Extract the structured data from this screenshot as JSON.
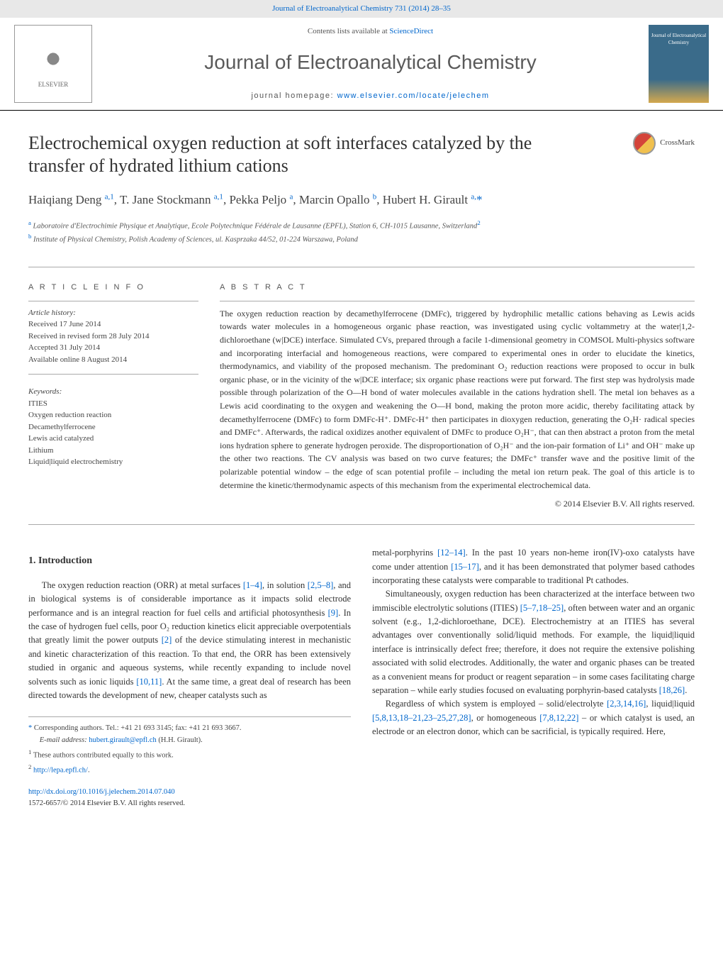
{
  "header": {
    "citation": "Journal of Electroanalytical Chemistry 731 (2014) 28–35",
    "contents_prefix": "Contents lists available at ",
    "contents_link": "ScienceDirect",
    "journal_title": "Journal of Electroanalytical Chemistry",
    "homepage_prefix": "journal homepage: ",
    "homepage_link": "www.elsevier.com/locate/jelechem",
    "publisher": "ELSEVIER",
    "cover_text": "Journal of Electroanalytical Chemistry"
  },
  "crossmark": {
    "label": "CrossMark"
  },
  "article": {
    "title": "Electrochemical oxygen reduction at soft interfaces catalyzed by the transfer of hydrated lithium cations",
    "authors_html": "Haiqiang Deng <sup>a,1</sup>, T. Jane Stockmann <sup>a,1</sup>, Pekka Peljo <sup>a</sup>, Marcin Opallo <sup>b</sup>, Hubert H. Girault <sup>a,</sup><span class='asterisk'>*</span>",
    "affil_a": "Laboratoire d'Electrochimie Physique et Analytique, Ecole Polytechnique Fédérale de Lausanne (EPFL), Station 6, CH-1015 Lausanne, Switzerland",
    "affil_b": "Institute of Physical Chemistry, Polish Academy of Sciences, ul. Kasprzaka 44/52, 01-224 Warszawa, Poland",
    "affil_a_sup": "a",
    "affil_b_sup": "b",
    "affil_a_note_sup": "2"
  },
  "info": {
    "section_label": "A R T I C L E   I N F O",
    "history_label": "Article history:",
    "received": "Received 17 June 2014",
    "revised": "Received in revised form 28 July 2014",
    "accepted": "Accepted 31 July 2014",
    "online": "Available online 8 August 2014",
    "keywords_label": "Keywords:",
    "keywords": [
      "ITIES",
      "Oxygen reduction reaction",
      "Decamethylferrocene",
      "Lewis acid catalyzed",
      "Lithium",
      "Liquid|liquid electrochemistry"
    ]
  },
  "abstract": {
    "label": "A B S T R A C T",
    "text": "The oxygen reduction reaction by decamethylferrocene (DMFc), triggered by hydrophilic metallic cations behaving as Lewis acids towards water molecules in a homogeneous organic phase reaction, was investigated using cyclic voltammetry at the water|1,2-dichloroethane (w|DCE) interface. Simulated CVs, prepared through a facile 1-dimensional geometry in COMSOL Multi-physics software and incorporating interfacial and homogeneous reactions, were compared to experimental ones in order to elucidate the kinetics, thermodynamics, and viability of the proposed mechanism. The predominant O₂ reduction reactions were proposed to occur in bulk organic phase, or in the vicinity of the w|DCE interface; six organic phase reactions were put forward. The first step was hydrolysis made possible through polarization of the O—H bond of water molecules available in the cations hydration shell. The metal ion behaves as a Lewis acid coordinating to the oxygen and weakening the O—H bond, making the proton more acidic, thereby facilitating attack by decamethylferrocene (DMFc) to form DMFc-H⁺. DMFc-H⁺ then participates in dioxygen reduction, generating the O₂H· radical species and DMFc⁺. Afterwards, the radical oxidizes another equivalent of DMFc to produce O₂H⁻, that can then abstract a proton from the metal ions hydration sphere to generate hydrogen peroxide. The disproportionation of O₂H⁻ and the ion-pair formation of Li⁺ and OH⁻ make up the other two reactions. The CV analysis was based on two curve features; the DMFc⁺ transfer wave and the positive limit of the polarizable potential window – the edge of scan potential profile – including the metal ion return peak. The goal of this article is to determine the kinetic/thermodynamic aspects of this mechanism from the experimental electrochemical data.",
    "copyright": "© 2014 Elsevier B.V. All rights reserved."
  },
  "body": {
    "intro_heading": "1. Introduction",
    "col1_p1": "The oxygen reduction reaction (ORR) at metal surfaces <span class='ref'>[1–4]</span>, in solution <span class='ref'>[2,5–8]</span>, and in biological systems is of considerable importance as it impacts solid electrode performance and is an integral reaction for fuel cells and artificial photosynthesis <span class='ref'>[9]</span>. In the case of hydrogen fuel cells, poor O₂ reduction kinetics elicit appreciable overpotentials that greatly limit the power outputs <span class='ref'>[2]</span> of the device stimulating interest in mechanistic and kinetic characterization of this reaction. To that end, the ORR has been extensively studied in organic and aqueous systems, while recently expanding to include novel solvents such as ionic liquids <span class='ref'>[10,11]</span>. At the same time, a great deal of research has been directed towards the development of new, cheaper catalysts such as",
    "col2_p1": "metal-porphyrins <span class='ref'>[12–14]</span>. In the past 10 years non-heme iron(IV)-oxo catalysts have come under attention <span class='ref'>[15–17]</span>, and it has been demonstrated that polymer based cathodes incorporating these catalysts were comparable to traditional Pt cathodes.",
    "col2_p2": "Simultaneously, oxygen reduction has been characterized at the interface between two immiscible electrolytic solutions (ITIES) <span class='ref'>[5–7,18–25]</span>, often between water and an organic solvent (e.g., 1,2-dichloroethane, DCE). Electrochemistry at an ITIES has several advantages over conventionally solid/liquid methods. For example, the liquid|liquid interface is intrinsically defect free; therefore, it does not require the extensive polishing associated with solid electrodes. Additionally, the water and organic phases can be treated as a convenient means for product or reagent separation – in some cases facilitating charge separation – while early studies focused on evaluating porphyrin-based catalysts <span class='ref'>[18,26]</span>.",
    "col2_p3": "Regardless of which system is employed – solid/electrolyte <span class='ref'>[2,3,14,16]</span>, liquid|liquid <span class='ref'>[5,8,13,18–21,23–25,27,28]</span>, or homogeneous <span class='ref'>[7,8,12,22]</span> – or which catalyst is used, an electrode or an electron donor, which can be sacrificial, is typically required. Here,"
  },
  "footnotes": {
    "corr": "Corresponding authors. Tel.: +41 21 693 3145; fax: +41 21 693 3667.",
    "corr_marker": "*",
    "email_label": "E-mail address: ",
    "email": "hubert.girault@epfl.ch",
    "email_suffix": " (H.H. Girault).",
    "note1": "These authors contributed equally to this work.",
    "note1_sup": "1",
    "note2_sup": "2",
    "note2_link": "http://lepa.epfl.ch/",
    "note2_suffix": "."
  },
  "doi": {
    "link": "http://dx.doi.org/10.1016/j.jelechem.2014.07.040",
    "issn_line": "1572-6657/© 2014 Elsevier B.V. All rights reserved."
  },
  "colors": {
    "link": "#0066cc",
    "text": "#333333",
    "header_bg": "#e8e8e8",
    "cover_top": "#3a6b8a",
    "cover_bottom": "#d4a94e"
  }
}
